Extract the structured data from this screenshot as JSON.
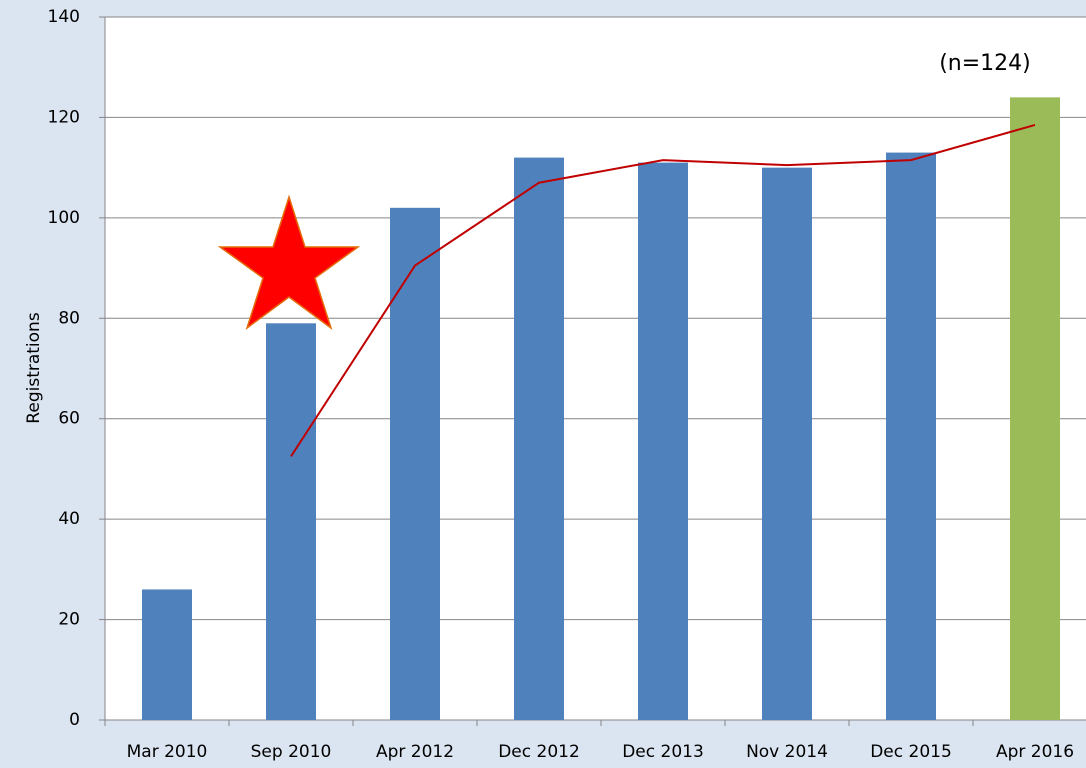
{
  "chart_data": {
    "type": "bar",
    "categories": [
      "Mar 2010",
      "Sep 2010",
      "Apr 2012",
      "Dec 2012",
      "Dec 2013",
      "Nov 2014",
      "Dec 2015",
      "Apr 2016"
    ],
    "values": [
      26,
      79,
      102,
      112,
      111,
      110,
      113,
      124
    ],
    "colors": [
      "#4f81bd",
      "#4f81bd",
      "#4f81bd",
      "#4f81bd",
      "#4f81bd",
      "#4f81bd",
      "#4f81bd",
      "#9bbb59"
    ],
    "trendline": {
      "type": "line",
      "color": "#c00000",
      "values": [
        null,
        52.5,
        90.5,
        107,
        111.5,
        110.5,
        111.5,
        118.5
      ]
    },
    "ylabel": "Registrations",
    "annotation": "(n=124)",
    "ylim": [
      0,
      140
    ],
    "yticks": [
      0,
      20,
      40,
      60,
      80,
      100,
      120,
      140
    ],
    "grid": true
  }
}
